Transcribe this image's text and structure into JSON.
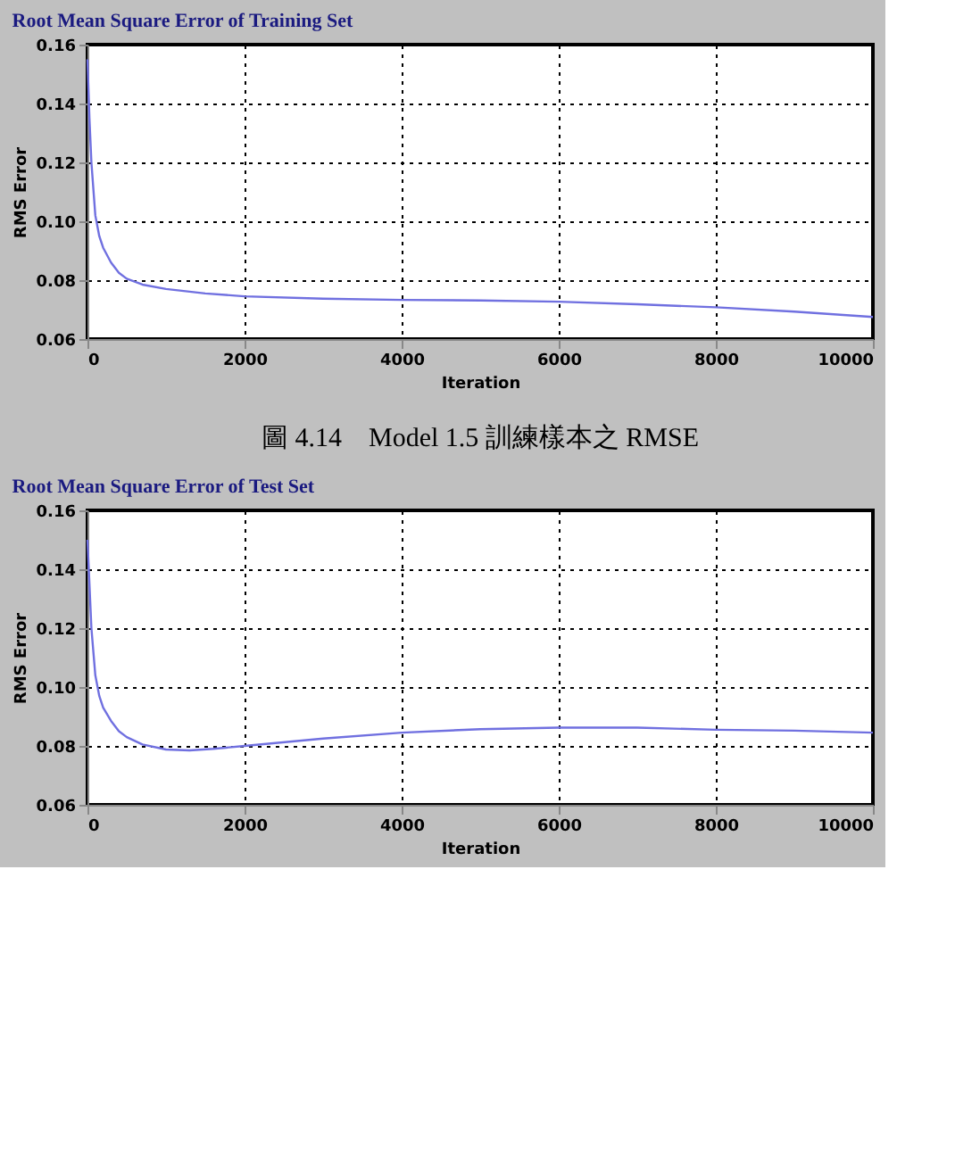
{
  "chart_data": [
    {
      "type": "line",
      "title": "Root Mean Square Error of Training Set",
      "xlabel": "Iteration",
      "ylabel": "RMS Error",
      "annotations": [
        "圖 4.14　Model 1.5 訓練樣本之 RMSE"
      ],
      "x": [
        0,
        25,
        50,
        100,
        150,
        200,
        300,
        400,
        500,
        700,
        1000,
        1500,
        2000,
        3000,
        4000,
        5000,
        6000,
        7000,
        8000,
        9000,
        10000
      ],
      "series": [
        {
          "color": "#7070e0",
          "values": [
            0.155,
            0.135,
            0.12,
            0.102,
            0.095,
            0.091,
            0.086,
            0.0825,
            0.0805,
            0.0785,
            0.077,
            0.0755,
            0.0745,
            0.0737,
            0.0733,
            0.0731,
            0.0727,
            0.0718,
            0.0708,
            0.0693,
            0.0675
          ]
        }
      ],
      "xlim": [
        0,
        10000
      ],
      "xticks": [
        0,
        2000,
        4000,
        6000,
        8000,
        10000
      ],
      "ylim": [
        0.06,
        0.16
      ],
      "yticks": [
        {
          "value": 0.06,
          "label": "0.06"
        },
        {
          "value": 0.08,
          "label": "0.08"
        },
        {
          "value": 0.1,
          "label": "0.10"
        },
        {
          "value": 0.12,
          "label": "0.12"
        },
        {
          "value": 0.14,
          "label": "0.14"
        },
        {
          "value": 0.16,
          "label": "0.16"
        }
      ],
      "grid": true,
      "line_style": "solid",
      "marker": "none"
    },
    {
      "type": "line",
      "title": "Root Mean Square Error of Test Set",
      "xlabel": "Iteration",
      "ylabel": "RMS Error",
      "x": [
        0,
        25,
        50,
        100,
        150,
        200,
        300,
        400,
        500,
        700,
        1000,
        1300,
        1600,
        2000,
        3000,
        4000,
        5000,
        6000,
        7000,
        8000,
        9000,
        10000
      ],
      "series": [
        {
          "color": "#7070e0",
          "values": [
            0.15,
            0.135,
            0.12,
            0.104,
            0.097,
            0.093,
            0.0885,
            0.085,
            0.083,
            0.0805,
            0.0788,
            0.0785,
            0.079,
            0.08,
            0.0825,
            0.0845,
            0.0857,
            0.0862,
            0.0862,
            0.0855,
            0.0852,
            0.0845
          ]
        }
      ],
      "xlim": [
        0,
        10000
      ],
      "xticks": [
        0,
        2000,
        4000,
        6000,
        8000,
        10000
      ],
      "ylim": [
        0.06,
        0.16
      ],
      "yticks": [
        {
          "value": 0.06,
          "label": "0.06"
        },
        {
          "value": 0.08,
          "label": "0.08"
        },
        {
          "value": 0.1,
          "label": "0.10"
        },
        {
          "value": 0.12,
          "label": "0.12"
        },
        {
          "value": 0.14,
          "label": "0.14"
        },
        {
          "value": 0.16,
          "label": "0.16"
        }
      ],
      "grid": true,
      "line_style": "solid",
      "marker": "none"
    }
  ]
}
